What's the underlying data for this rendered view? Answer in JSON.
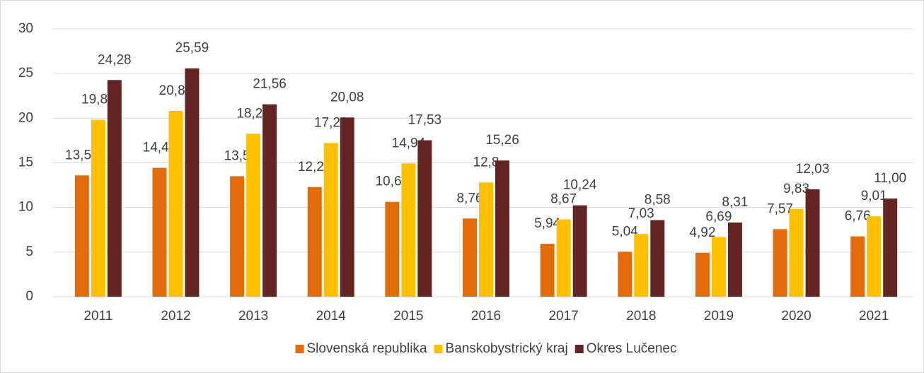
{
  "chart_data": {
    "type": "bar",
    "categories": [
      "2011",
      "2012",
      "2013",
      "2014",
      "2015",
      "2016",
      "2017",
      "2018",
      "2019",
      "2020",
      "2021"
    ],
    "series": [
      {
        "name": "Slovenská republika",
        "color": "#e26b0a",
        "values": [
          13.59,
          14.44,
          13.5,
          12.29,
          10.63,
          8.76,
          5.94,
          5.04,
          4.92,
          7.57,
          6.76
        ],
        "value_labels": [
          "13,59",
          "14,44",
          "13,5",
          "12,29",
          "10,63",
          "8,76",
          "5,94",
          "5,04",
          "4,92",
          "7,57",
          "6,76"
        ]
      },
      {
        "name": "Banskobystrický kraj",
        "color": "#ffc000",
        "values": [
          19.83,
          20.81,
          18.26,
          17.22,
          14.94,
          12.8,
          8.67,
          7.03,
          6.69,
          9.83,
          9.01
        ],
        "value_labels": [
          "19,83",
          "20,81",
          "18,26",
          "17,22",
          "14,94",
          "12,8",
          "8,67",
          "7,03",
          "6,69",
          "9,83",
          "9,01"
        ]
      },
      {
        "name": "Okres Lučenec",
        "color": "#632523",
        "values": [
          24.28,
          25.59,
          21.56,
          20.08,
          17.53,
          15.26,
          10.24,
          8.58,
          8.31,
          12.03,
          11.0
        ],
        "value_labels": [
          "24,28",
          "25,59",
          "21,56",
          "20,08",
          "17,53",
          "15,26",
          "10,24",
          "8,58",
          "8,31",
          "12,03",
          "11,00"
        ]
      }
    ],
    "ylim": [
      0,
      30
    ],
    "yticks": [
      0,
      5,
      10,
      15,
      20,
      25,
      30
    ],
    "grid": true,
    "legend": "bottom"
  }
}
